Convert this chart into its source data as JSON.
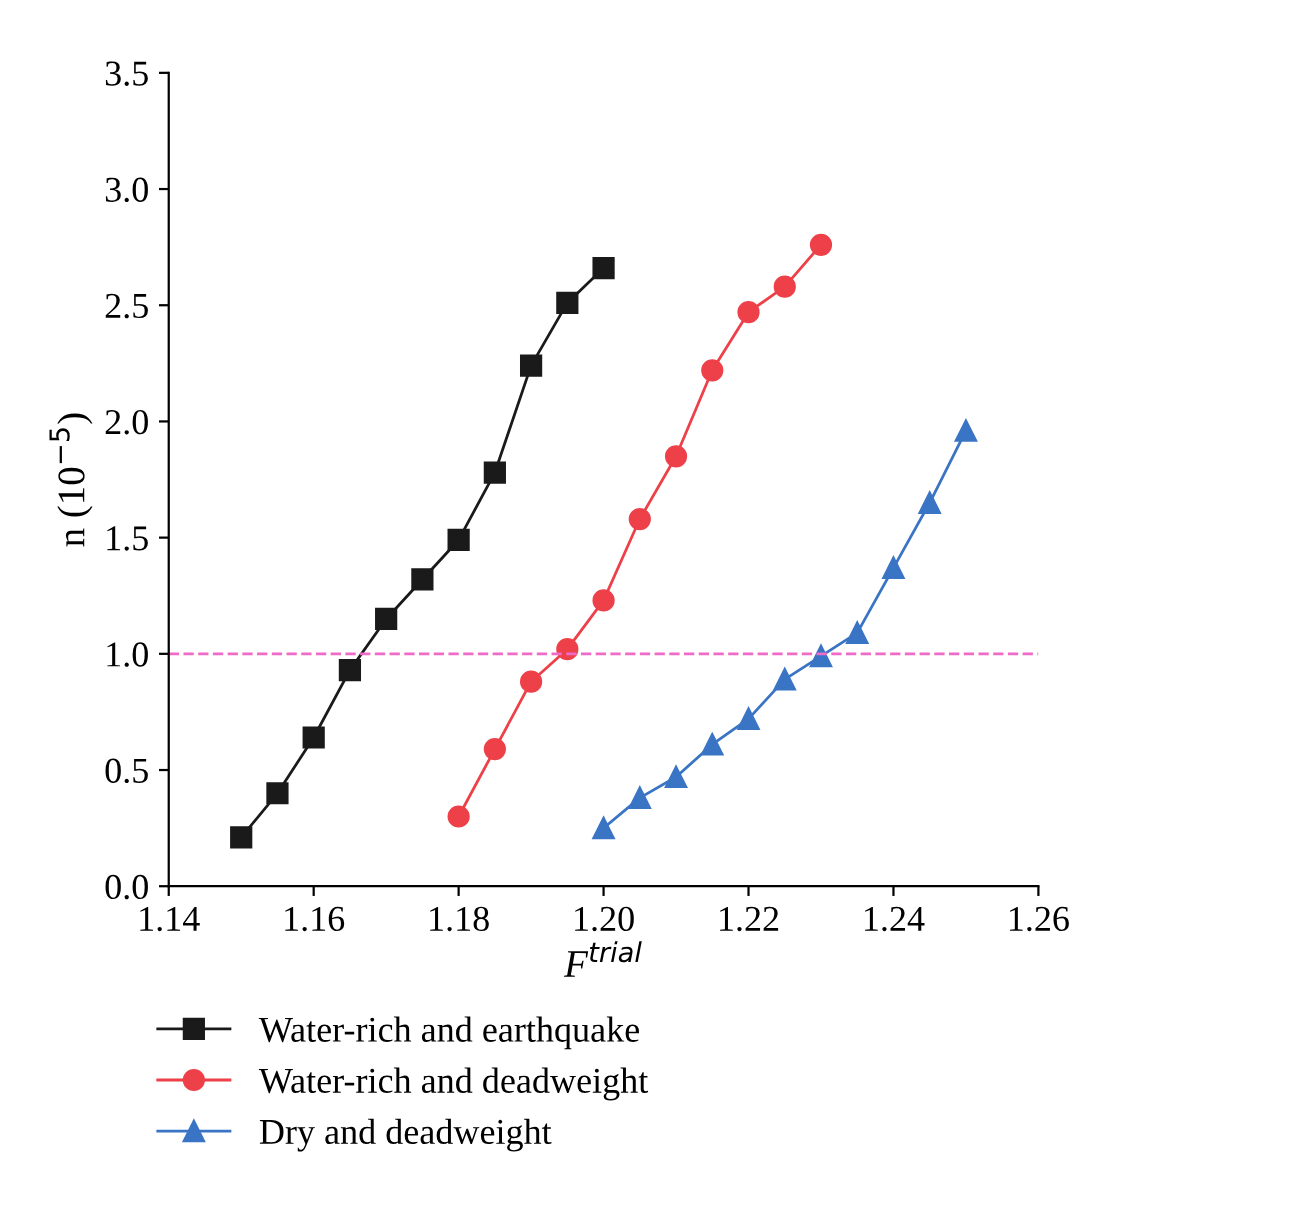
{
  "chart_data": {
    "type": "line",
    "xlabel": "F$^{trial}$",
    "ylabel": "n (10$^{−5}$)",
    "xlim": [
      1.14,
      1.26
    ],
    "ylim": [
      0,
      3.5
    ],
    "xticks": [
      {
        "value": 1.14,
        "label": "1.14"
      },
      {
        "value": 1.16,
        "label": "1.16"
      },
      {
        "value": 1.18,
        "label": "1.18"
      },
      {
        "value": 1.2,
        "label": "1.20"
      },
      {
        "value": 1.22,
        "label": "1.22"
      },
      {
        "value": 1.24,
        "label": "1.24"
      },
      {
        "value": 1.26,
        "label": "1.26"
      }
    ],
    "yticks": [
      {
        "value": 0,
        "label": "0.0"
      },
      {
        "value": 0.5,
        "label": "0.5"
      },
      {
        "value": 1,
        "label": "1.0"
      },
      {
        "value": 1.5,
        "label": "1.5"
      },
      {
        "value": 2,
        "label": "2.0"
      },
      {
        "value": 2.5,
        "label": "2.5"
      },
      {
        "value": 3,
        "label": "3.0"
      },
      {
        "value": 3.5,
        "label": "3.5"
      }
    ],
    "grid": false,
    "legend": "bottom",
    "line_style": "solid",
    "series": [
      {
        "name": "Water-rich and earthquake",
        "color": "#1a1a1a",
        "marker": "square",
        "x": [
          1.15,
          1.155,
          1.16,
          1.165,
          1.17,
          1.175,
          1.18,
          1.185,
          1.19,
          1.195,
          1.2
        ],
        "values": [
          0.21,
          0.4,
          0.64,
          0.93,
          1.15,
          1.32,
          1.49,
          1.78,
          2.24,
          2.51,
          2.66
        ]
      },
      {
        "name": "Water-rich and deadweight",
        "color": "#ee4049",
        "marker": "circle",
        "x": [
          1.18,
          1.185,
          1.19,
          1.195,
          1.2,
          1.205,
          1.21,
          1.215,
          1.22,
          1.225,
          1.23
        ],
        "values": [
          0.3,
          0.59,
          0.88,
          1.02,
          1.23,
          1.58,
          1.85,
          2.22,
          2.47,
          2.58,
          2.76
        ]
      },
      {
        "name": "Dry and deadweight",
        "color": "#3a74c4",
        "marker": "triangle",
        "x": [
          1.2,
          1.205,
          1.21,
          1.215,
          1.22,
          1.225,
          1.23,
          1.235,
          1.24,
          1.245,
          1.25
        ],
        "values": [
          0.25,
          0.38,
          0.47,
          0.61,
          0.72,
          0.89,
          0.99,
          1.09,
          1.37,
          1.65,
          1.96
        ]
      }
    ],
    "ref_lines": [
      {
        "axis": "y",
        "value": 1.0,
        "color": "#f06ac8",
        "line_style": "dashed"
      }
    ]
  }
}
